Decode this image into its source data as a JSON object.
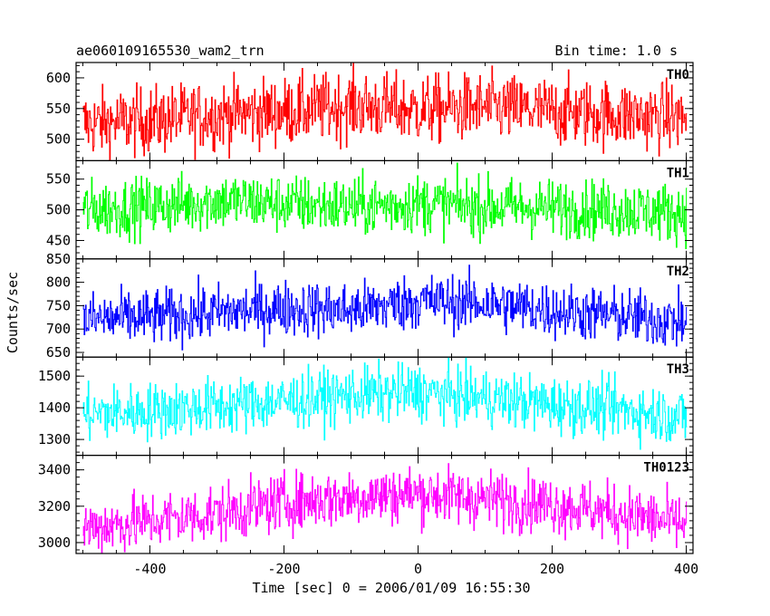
{
  "header": {
    "title": "ae060109165530_wam2_trn",
    "bin_time": "Bin time: 1.0 s"
  },
  "chart_data": {
    "type": "line",
    "xlabel": "Time [sec] 0 = 2006/01/09 16:55:30",
    "ylabel": "Counts/sec",
    "xlim": [
      -510,
      410
    ],
    "x_ticks": [
      -400,
      -200,
      0,
      200,
      400
    ],
    "x_range_data": [
      -500,
      400
    ],
    "x_step": 1.0,
    "panels": [
      {
        "name": "TH0",
        "color": "#ff0000",
        "ylim": [
          465,
          625
        ],
        "y_ticks": [
          500,
          550,
          600
        ],
        "mean": 540,
        "noise": 28,
        "trend": [
          [
            -500,
            525
          ],
          [
            -400,
            530
          ],
          [
            -300,
            540
          ],
          [
            -200,
            545
          ],
          [
            -100,
            555
          ],
          [
            0,
            548
          ],
          [
            100,
            552
          ],
          [
            200,
            545
          ],
          [
            300,
            540
          ],
          [
            400,
            535
          ]
        ]
      },
      {
        "name": "TH1",
        "color": "#00ff00",
        "ylim": [
          420,
          580
        ],
        "y_ticks": [
          450,
          500,
          550
        ],
        "mean": 505,
        "noise": 24,
        "trend": [
          [
            -500,
            500
          ],
          [
            -400,
            505
          ],
          [
            -300,
            515
          ],
          [
            -200,
            510
          ],
          [
            -100,
            505
          ],
          [
            0,
            510
          ],
          [
            100,
            505
          ],
          [
            200,
            503
          ],
          [
            300,
            500
          ],
          [
            400,
            495
          ]
        ]
      },
      {
        "name": "TH2",
        "color": "#0000ff",
        "ylim": [
          640,
          850
        ],
        "y_ticks": [
          650,
          700,
          750,
          800,
          850
        ],
        "mean": 740,
        "noise": 30,
        "trend": [
          [
            -500,
            720
          ],
          [
            -400,
            725
          ],
          [
            -300,
            735
          ],
          [
            -200,
            745
          ],
          [
            -100,
            740
          ],
          [
            0,
            760
          ],
          [
            100,
            755
          ],
          [
            200,
            740
          ],
          [
            300,
            728
          ],
          [
            400,
            715
          ]
        ]
      },
      {
        "name": "TH3",
        "color": "#00ffff",
        "ylim": [
          1250,
          1560
        ],
        "y_ticks": [
          1300,
          1400,
          1500
        ],
        "mean": 1410,
        "noise": 45,
        "trend": [
          [
            -500,
            1380
          ],
          [
            -400,
            1390
          ],
          [
            -300,
            1405
          ],
          [
            -200,
            1420
          ],
          [
            -100,
            1440
          ],
          [
            0,
            1450
          ],
          [
            100,
            1430
          ],
          [
            200,
            1410
          ],
          [
            300,
            1395
          ],
          [
            400,
            1370
          ]
        ]
      },
      {
        "name": "TH0123",
        "color": "#ff00ff",
        "ylim": [
          2940,
          3480
        ],
        "y_ticks": [
          3000,
          3200,
          3400
        ],
        "mean": 3180,
        "noise": 80,
        "trend": [
          [
            -500,
            3080
          ],
          [
            -400,
            3120
          ],
          [
            -300,
            3160
          ],
          [
            -200,
            3220
          ],
          [
            -100,
            3250
          ],
          [
            0,
            3270
          ],
          [
            100,
            3240
          ],
          [
            200,
            3210
          ],
          [
            300,
            3160
          ],
          [
            400,
            3100
          ]
        ]
      }
    ]
  }
}
